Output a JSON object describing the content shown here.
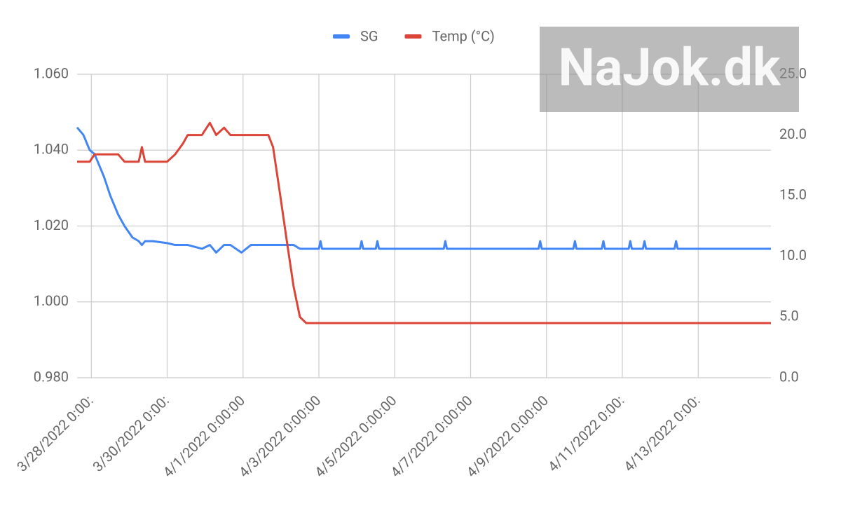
{
  "chart_data": {
    "type": "line",
    "watermark": "NaJok.dk",
    "x": [
      "3/27/2022 15:00:00",
      "3/27/2022 19:00:00",
      "3/27/2022 23:00:00",
      "3/28/2022 2:00:00",
      "3/28/2022 6:00:00",
      "3/28/2022 8:00:00",
      "3/28/2022 12:00:00",
      "3/28/2022 17:00:00",
      "3/28/2022 21:00:00",
      "3/29/2022 2:00:00",
      "3/29/2022 6:00:00",
      "3/29/2022 8:00:00",
      "3/29/2022 10:00:00",
      "3/29/2022 15:00:00",
      "3/30/2022 0:00:00",
      "3/30/2022 5:00:00",
      "3/30/2022 10:00:00",
      "3/30/2022 13:00:00",
      "3/30/2022 22:00:00",
      "3/31/2022 3:00:00",
      "3/31/2022 7:00:00",
      "3/31/2022 12:00:00",
      "3/31/2022 16:00:00",
      "3/31/2022 23:00:00",
      "4/1/2022 5:00:00",
      "4/1/2022 16:00:00",
      "4/1/2022 19:00:00",
      "4/1/2022 23:00:00",
      "4/2/2022 4:00:00",
      "4/2/2022 8:00:00",
      "4/2/2022 12:00:00",
      "4/2/2022 16:00:00",
      "4/3/2022 0:00:00",
      "4/3/2022 1:00:00",
      "4/3/2022 2:00:00",
      "4/4/2022 2:00:00",
      "4/4/2022 3:00:00",
      "4/4/2022 4:00:00",
      "4/4/2022 12:00:00",
      "4/4/2022 13:00:00",
      "4/4/2022 14:00:00",
      "4/6/2022 7:00:00",
      "4/6/2022 8:00:00",
      "4/6/2022 9:00:00",
      "4/8/2022 19:00:00",
      "4/8/2022 20:00:00",
      "4/8/2022 21:00:00",
      "4/9/2022 17:00:00",
      "4/9/2022 18:00:00",
      "4/9/2022 19:00:00",
      "4/10/2022 11:00:00",
      "4/10/2022 12:00:00",
      "4/10/2022 13:00:00",
      "4/11/2022 4:00:00",
      "4/11/2022 5:00:00",
      "4/11/2022 6:00:00",
      "4/11/2022 13:00:00",
      "4/11/2022 14:00:00",
      "4/11/2022 15:00:00",
      "4/12/2022 9:00:00",
      "4/12/2022 10:00:00",
      "4/12/2022 11:00:00",
      "4/14/2022 22:00:00"
    ],
    "series": [
      {
        "name": "SG",
        "color": "#4285f4",
        "axis": "y",
        "values": [
          1.046,
          1.044,
          1.04,
          1.039,
          1.035,
          1.033,
          1.028,
          1.023,
          1.02,
          1.017,
          1.016,
          1.015,
          1.016,
          1.016,
          1.0155,
          1.015,
          1.015,
          1.015,
          1.014,
          1.015,
          1.013,
          1.015,
          1.015,
          1.013,
          1.015,
          1.015,
          1.015,
          1.015,
          1.015,
          1.015,
          1.014,
          1.014,
          1.014,
          1.016,
          1.014,
          1.014,
          1.016,
          1.014,
          1.014,
          1.016,
          1.014,
          1.014,
          1.016,
          1.014,
          1.014,
          1.016,
          1.014,
          1.014,
          1.016,
          1.014,
          1.014,
          1.016,
          1.014,
          1.014,
          1.016,
          1.014,
          1.014,
          1.016,
          1.014,
          1.014,
          1.016,
          1.014,
          1.014
        ]
      },
      {
        "name": "Temp (°C)",
        "color": "#db4437",
        "axis": "y2",
        "values": [
          17.8,
          17.8,
          17.8,
          18.4,
          18.4,
          18.4,
          18.4,
          18.4,
          17.8,
          17.8,
          17.8,
          19.0,
          17.8,
          17.8,
          17.8,
          18.4,
          19.3,
          20.0,
          20.0,
          21.0,
          20.0,
          20.6,
          20.0,
          20.0,
          20.0,
          20.0,
          19.0,
          15.5,
          11.0,
          7.5,
          5.0,
          4.5,
          4.5,
          4.5,
          4.5,
          4.5,
          4.5,
          4.5,
          4.5,
          4.5,
          4.5,
          4.5,
          4.5,
          4.5,
          4.5,
          4.5,
          4.5,
          4.5,
          4.5,
          4.5,
          4.5,
          4.5,
          4.5,
          4.5,
          4.5,
          4.5,
          4.5,
          4.5,
          4.5,
          4.5,
          4.5,
          4.5,
          4.5
        ]
      }
    ],
    "xlim": [
      "3/27/2022 15:00:00",
      "4/14/2022 22:00:00"
    ],
    "xticks": [
      {
        "value": "3/28/2022 0:00:00",
        "label": "3/28/2022 0:00:"
      },
      {
        "value": "3/30/2022 0:00:00",
        "label": "3/30/2022 0:00:"
      },
      "4/1/2022 0:00:00",
      "4/3/2022 0:00:00",
      "4/5/2022 0:00:00",
      "4/7/2022 0:00:00",
      "4/9/2022 0:00:00",
      {
        "value": "4/11/2022 0:00:00",
        "label": "4/11/2022 0:00:"
      },
      {
        "value": "4/13/2022 0:00:00",
        "label": "4/13/2022 0:00:"
      }
    ],
    "ylim": [
      0.98,
      1.06
    ],
    "yticks": [
      {
        "value": 0.98,
        "label": "0.980"
      },
      {
        "value": 1.0,
        "label": "1.000"
      },
      {
        "value": 1.02,
        "label": "1.020"
      },
      {
        "value": 1.04,
        "label": "1.040"
      },
      {
        "value": 1.06,
        "label": "1.060"
      }
    ],
    "y2lim": [
      0,
      25
    ],
    "y2ticks": [
      {
        "value": 0,
        "label": "0.0"
      },
      {
        "value": 5,
        "label": "5.0"
      },
      {
        "value": 10,
        "label": "10.0"
      },
      {
        "value": 15,
        "label": "15.0"
      },
      {
        "value": 20,
        "label": "20.0"
      },
      {
        "value": 25,
        "label": "25.0"
      }
    ],
    "grid": true,
    "legend": "top"
  }
}
